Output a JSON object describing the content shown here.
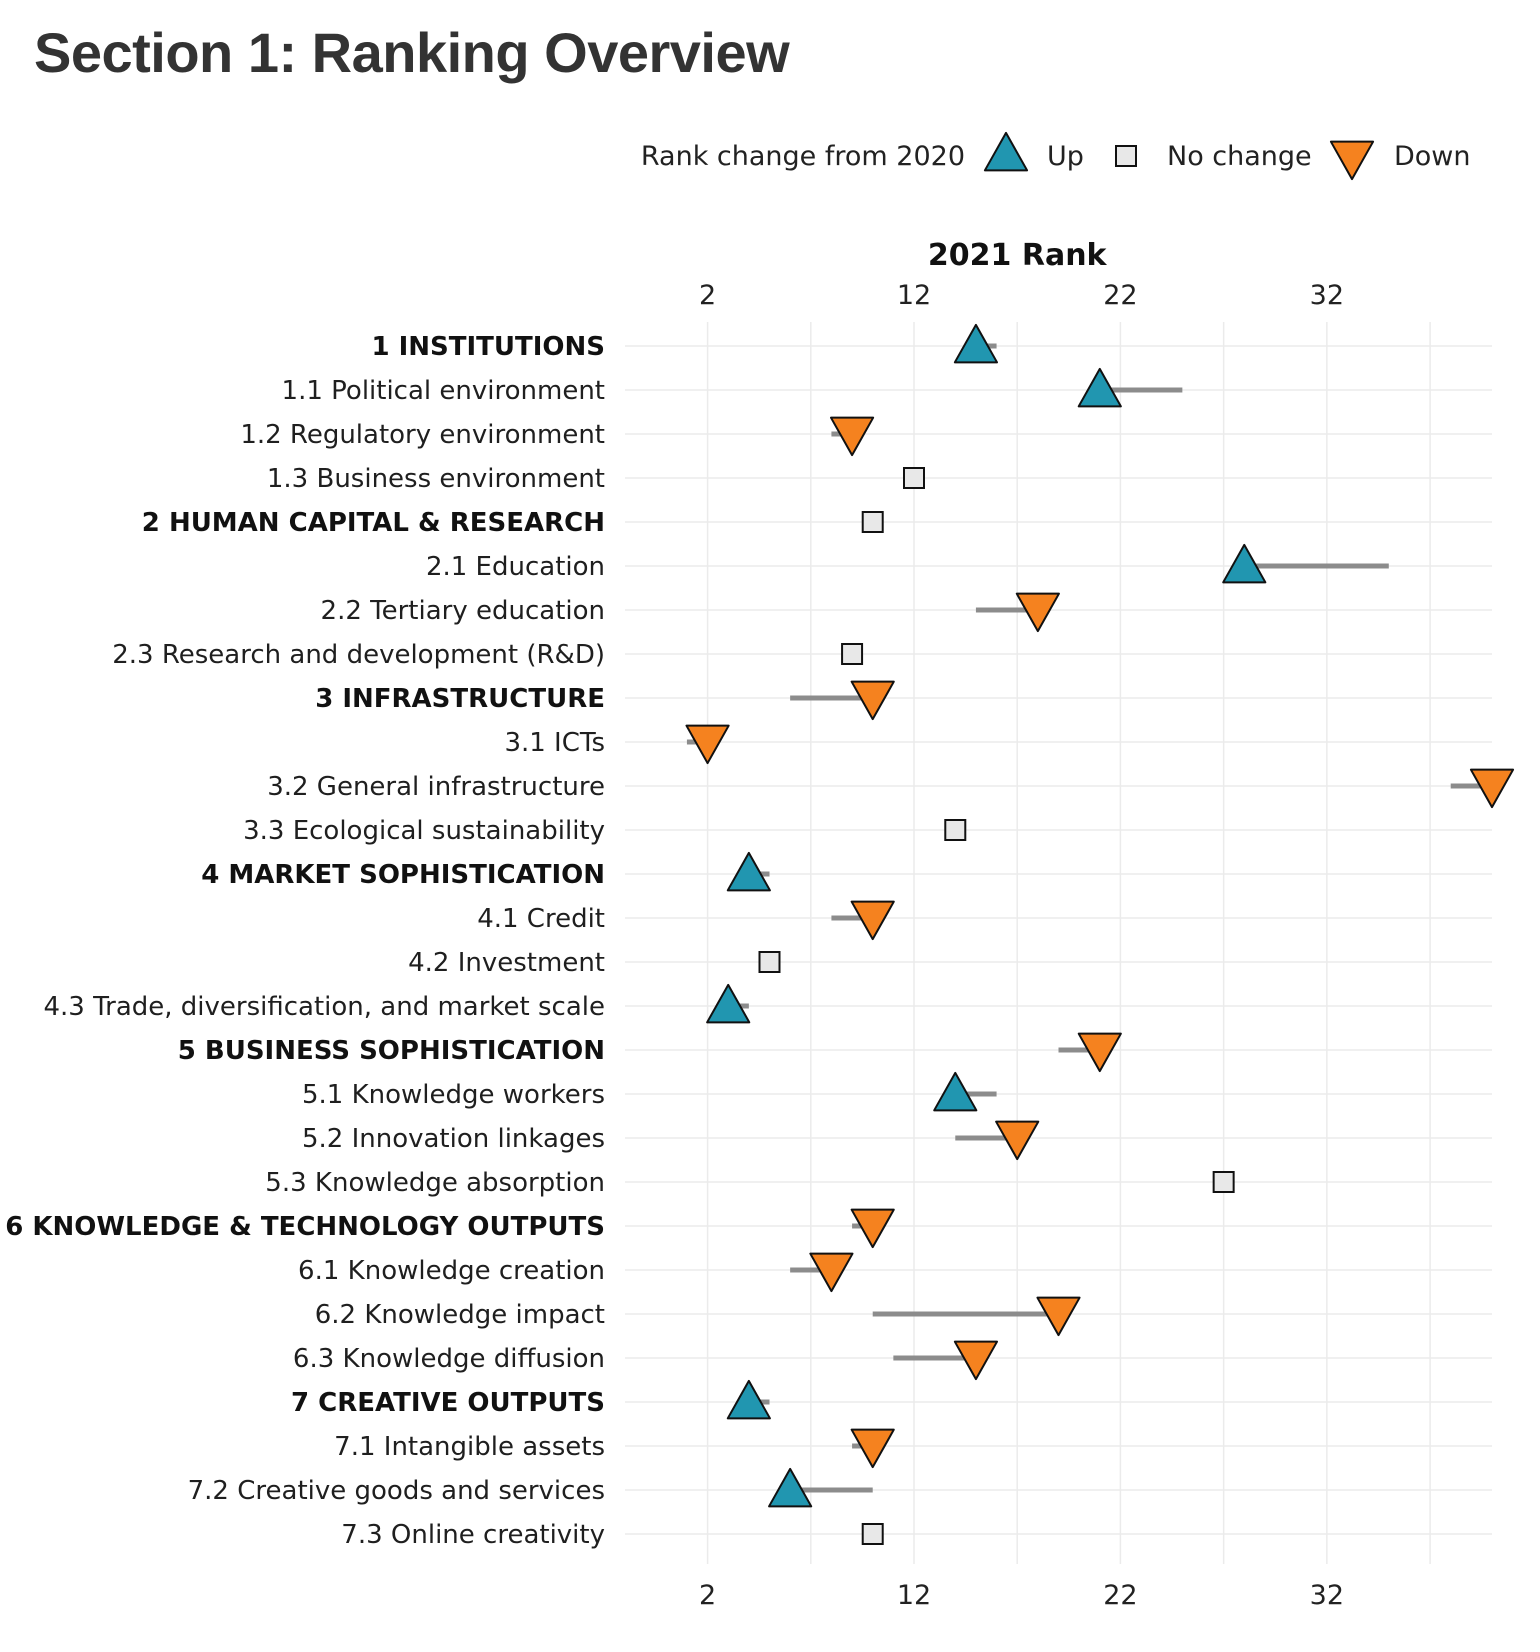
{
  "page": {
    "title": "Section 1: Ranking Overview"
  },
  "legend": {
    "title": "Rank change from 2020",
    "items": [
      {
        "label": "Up",
        "shape": "triangle-up",
        "color": "#2196b0"
      },
      {
        "label": "No change",
        "shape": "square",
        "color": "#e8e8e8"
      },
      {
        "label": "Down",
        "shape": "triangle-down",
        "color": "#f5821f"
      }
    ]
  },
  "chart_data": {
    "type": "scatter",
    "xlabel": "2021 Rank",
    "ylabel": "",
    "xlim": [
      -2,
      40
    ],
    "xticks": [
      2,
      12,
      22,
      32
    ],
    "grid": true,
    "legend_position": "top-right",
    "rows": [
      {
        "label": "1 INSTITUTIONS",
        "bold": true,
        "rank2021": 15,
        "rank2020": 16,
        "change": "up"
      },
      {
        "label": "1.1 Political environment",
        "bold": false,
        "rank2021": 21,
        "rank2020": 25,
        "change": "up"
      },
      {
        "label": "1.2 Regulatory environment",
        "bold": false,
        "rank2021": 9,
        "rank2020": 8,
        "change": "down"
      },
      {
        "label": "1.3 Business environment",
        "bold": false,
        "rank2021": 12,
        "rank2020": 12,
        "change": "none"
      },
      {
        "label": "2 HUMAN CAPITAL & RESEARCH",
        "bold": true,
        "rank2021": 10,
        "rank2020": 10,
        "change": "none"
      },
      {
        "label": "2.1 Education",
        "bold": false,
        "rank2021": 28,
        "rank2020": 35,
        "change": "up"
      },
      {
        "label": "2.2 Tertiary education",
        "bold": false,
        "rank2021": 18,
        "rank2020": 15,
        "change": "down"
      },
      {
        "label": "2.3 Research and development (R&D)",
        "bold": false,
        "rank2021": 9,
        "rank2020": 9,
        "change": "none"
      },
      {
        "label": "3 INFRASTRUCTURE",
        "bold": true,
        "rank2021": 10,
        "rank2020": 6,
        "change": "down"
      },
      {
        "label": "3.1 ICTs",
        "bold": false,
        "rank2021": 2,
        "rank2020": 1,
        "change": "down"
      },
      {
        "label": "3.2 General infrastructure",
        "bold": false,
        "rank2021": 40,
        "rank2020": 38,
        "change": "down"
      },
      {
        "label": "3.3 Ecological sustainability",
        "bold": false,
        "rank2021": 14,
        "rank2020": 14,
        "change": "none"
      },
      {
        "label": "4 MARKET SOPHISTICATION",
        "bold": true,
        "rank2021": 4,
        "rank2020": 5,
        "change": "up"
      },
      {
        "label": "4.1 Credit",
        "bold": false,
        "rank2021": 10,
        "rank2020": 8,
        "change": "down"
      },
      {
        "label": "4.2 Investment",
        "bold": false,
        "rank2021": 5,
        "rank2020": 5,
        "change": "none"
      },
      {
        "label": "4.3 Trade, diversification, and market scale",
        "bold": false,
        "rank2021": 3,
        "rank2020": 4,
        "change": "up"
      },
      {
        "label": "5 BUSINESS SOPHISTICATION",
        "bold": true,
        "rank2021": 21,
        "rank2020": 19,
        "change": "down"
      },
      {
        "label": "5.1 Knowledge workers",
        "bold": false,
        "rank2021": 14,
        "rank2020": 16,
        "change": "up"
      },
      {
        "label": "5.2 Innovation linkages",
        "bold": false,
        "rank2021": 17,
        "rank2020": 14,
        "change": "down"
      },
      {
        "label": "5.3 Knowledge absorption",
        "bold": false,
        "rank2021": 27,
        "rank2020": 27,
        "change": "none"
      },
      {
        "label": "6 KNOWLEDGE & TECHNOLOGY OUTPUTS",
        "bold": true,
        "rank2021": 10,
        "rank2020": 9,
        "change": "down"
      },
      {
        "label": "6.1 Knowledge creation",
        "bold": false,
        "rank2021": 8,
        "rank2020": 6,
        "change": "down"
      },
      {
        "label": "6.2 Knowledge impact",
        "bold": false,
        "rank2021": 19,
        "rank2020": 10,
        "change": "down"
      },
      {
        "label": "6.3 Knowledge diffusion",
        "bold": false,
        "rank2021": 15,
        "rank2020": 11,
        "change": "down"
      },
      {
        "label": "7 CREATIVE OUTPUTS",
        "bold": true,
        "rank2021": 4,
        "rank2020": 5,
        "change": "up"
      },
      {
        "label": "7.1 Intangible assets",
        "bold": false,
        "rank2021": 10,
        "rank2020": 9,
        "change": "down"
      },
      {
        "label": "7.2 Creative goods and services",
        "bold": false,
        "rank2021": 6,
        "rank2020": 10,
        "change": "up"
      },
      {
        "label": "7.3 Online creativity",
        "bold": false,
        "rank2021": 10,
        "rank2020": 10,
        "change": "none"
      }
    ]
  }
}
